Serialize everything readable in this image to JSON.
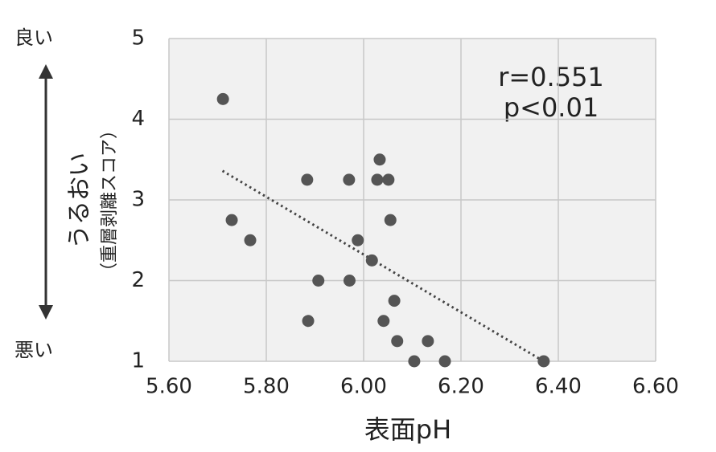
{
  "chart_data": {
    "type": "scatter",
    "x_label": "表面pH",
    "y_label": "うるおい",
    "y_sublabel": "（重層剥離スコア）",
    "y_top_label": "良い",
    "y_bottom_label": "悪い",
    "annotations": [
      "r=0.551",
      "p<0.01"
    ],
    "x": [
      5.711,
      5.729,
      5.767,
      5.884,
      5.886,
      5.907,
      5.97,
      5.971,
      5.988,
      6.017,
      6.028,
      6.033,
      6.051,
      6.055,
      6.041,
      6.063,
      6.069,
      6.104,
      6.132,
      6.167,
      6.37
    ],
    "y": [
      4.25,
      2.75,
      2.5,
      3.25,
      1.5,
      2.0,
      3.25,
      2.0,
      2.5,
      2.25,
      3.25,
      3.5,
      3.25,
      2.75,
      1.5,
      1.75,
      1.25,
      1.0,
      1.25,
      1.0,
      1.0
    ],
    "color": "#555555",
    "trendline": {
      "x": [
        5.71,
        6.37
      ],
      "y": [
        3.36,
        1.0
      ],
      "color": "#444444"
    },
    "xlim": [
      5.6,
      6.6
    ],
    "ylim": [
      1,
      5
    ],
    "xticks": [
      {
        "value": 5.6,
        "label": "5.60"
      },
      {
        "value": 5.8,
        "label": "5.80"
      },
      {
        "value": 6.0,
        "label": "6.00"
      },
      {
        "value": 6.2,
        "label": "6.20"
      },
      {
        "value": 6.4,
        "label": "6.40"
      },
      {
        "value": 6.6,
        "label": "6.60"
      }
    ],
    "yticks": [
      1,
      2,
      3,
      4,
      5
    ],
    "grid": true
  }
}
